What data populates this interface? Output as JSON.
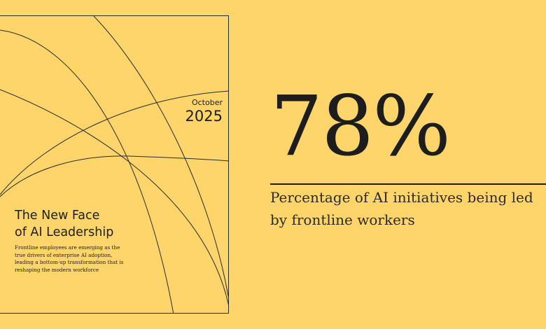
{
  "colors": {
    "background": "#FED56B",
    "ink": "#1d1d1d"
  },
  "cover": {
    "date_month": "October",
    "date_year": "2025",
    "title_lines": [
      "The New Face",
      "of AI Leadership"
    ],
    "description_lines": [
      "Frontline employees are emerging as the",
      "true drivers of enterprise AI adoption,",
      "leading a bottom-up transformation that is",
      "reshaping the modern workforce"
    ]
  },
  "stat": {
    "value": "78%",
    "caption_lines": [
      "Percentage of AI initiatives being led",
      "by frontline workers"
    ]
  }
}
